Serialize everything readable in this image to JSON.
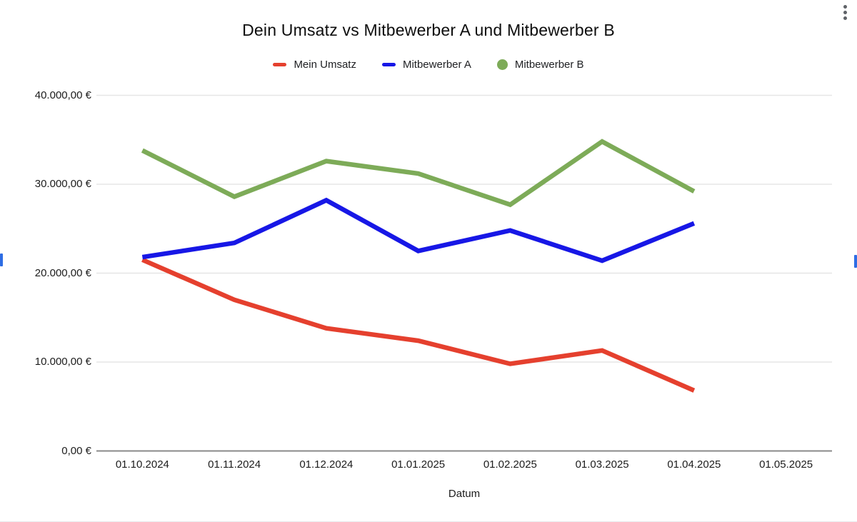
{
  "chart_data": {
    "type": "line",
    "title": "Dein Umsatz vs Mitbewerber A und Mitbewerber B",
    "xlabel": "Datum",
    "ylabel": "",
    "categories": [
      "01.10.2024",
      "01.11.2024",
      "01.12.2024",
      "01.01.2025",
      "01.02.2025",
      "01.03.2025",
      "01.04.2025",
      "01.05.2025"
    ],
    "series": [
      {
        "name": "Mein Umsatz",
        "color": "#e5402e",
        "marker": "dash",
        "values": [
          21500,
          17000,
          13800,
          12400,
          9800,
          11300,
          6800,
          null
        ]
      },
      {
        "name": "Mitbewerber A",
        "color": "#1717e6",
        "marker": "dash",
        "values": [
          21800,
          23400,
          28200,
          22500,
          24800,
          21400,
          25600,
          null
        ]
      },
      {
        "name": "Mitbewerber B",
        "color": "#7dab58",
        "marker": "circle",
        "values": [
          33800,
          28600,
          32600,
          31200,
          27700,
          34800,
          29200,
          null
        ]
      }
    ],
    "ylim": [
      0,
      40000
    ],
    "ytick_step": 10000,
    "ytick_labels": [
      "0,00 €",
      "10.000,00 €",
      "20.000,00 €",
      "30.000,00 €",
      "40.000,00 €"
    ],
    "grid": true,
    "legend_position": "top"
  },
  "colors": {
    "gridline": "#e6e6e6",
    "axis_line": "#8a8a8a",
    "selection_handle": "#2e6de4",
    "menu_dots": "#5f6368"
  }
}
